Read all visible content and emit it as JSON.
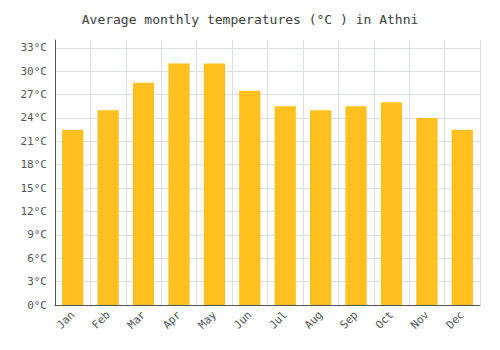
{
  "chart_data": {
    "type": "bar",
    "title": "Average monthly temperatures (°C ) in Athni",
    "categories": [
      "Jan",
      "Feb",
      "Mar",
      "Apr",
      "May",
      "Jun",
      "Jul",
      "Aug",
      "Sep",
      "Oct",
      "Nov",
      "Dec"
    ],
    "values": [
      22.5,
      25.0,
      28.5,
      31.0,
      31.0,
      27.5,
      25.5,
      25.0,
      25.5,
      26.0,
      24.0,
      22.5
    ],
    "color": "#FFC020",
    "ylim": [
      0,
      34
    ],
    "yticks": [
      {
        "value": 0,
        "label": "0°C"
      },
      {
        "value": 3,
        "label": "3°C"
      },
      {
        "value": 6,
        "label": "6°C"
      },
      {
        "value": 9,
        "label": "9°C"
      },
      {
        "value": 12,
        "label": "12°C"
      },
      {
        "value": 15,
        "label": "15°C"
      },
      {
        "value": 18,
        "label": "18°C"
      },
      {
        "value": 21,
        "label": "21°C"
      },
      {
        "value": 24,
        "label": "24°C"
      },
      {
        "value": 27,
        "label": "27°C"
      },
      {
        "value": 30,
        "label": "30°C"
      },
      {
        "value": 33,
        "label": "33°C"
      }
    ],
    "grid": true
  }
}
